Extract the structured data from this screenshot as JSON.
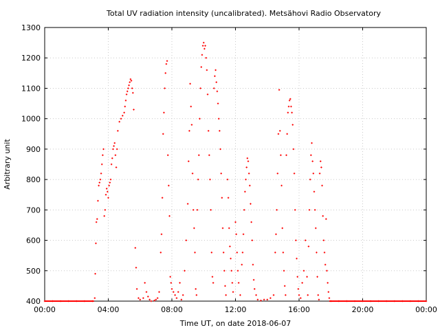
{
  "chart_data": {
    "type": "scatter",
    "title": "Total UV radiation intensity (uncalibrated). Metsähovi Radio Observatory",
    "xlabel": "Time UT, on date 2018-06-07",
    "ylabel": "Arbitrary unit",
    "xlim": [
      0,
      24
    ],
    "ylim": [
      400,
      1300
    ],
    "x_ticks": [
      {
        "value": 0,
        "label": "00:00"
      },
      {
        "value": 4,
        "label": "04:00"
      },
      {
        "value": 8,
        "label": "08:00"
      },
      {
        "value": 12,
        "label": "12:00"
      },
      {
        "value": 16,
        "label": "16:00"
      },
      {
        "value": 20,
        "label": "20:00"
      },
      {
        "value": 24,
        "label": "00:00"
      }
    ],
    "y_ticks": [
      400,
      500,
      600,
      700,
      800,
      900,
      1000,
      1100,
      1200,
      1300
    ],
    "grid": true,
    "legend": "none",
    "color": "#ff0000",
    "series": [
      {
        "x_unit": "hours UT",
        "points": [
          [
            0.0,
            400
          ],
          [
            0.5,
            400
          ],
          [
            1.0,
            400
          ],
          [
            1.5,
            400
          ],
          [
            2.0,
            400
          ],
          [
            2.5,
            400
          ],
          [
            3.0,
            400
          ],
          [
            3.15,
            410
          ],
          [
            3.18,
            490
          ],
          [
            3.22,
            590
          ],
          [
            3.25,
            660
          ],
          [
            3.3,
            670
          ],
          [
            3.35,
            730
          ],
          [
            3.4,
            780
          ],
          [
            3.45,
            790
          ],
          [
            3.5,
            800
          ],
          [
            3.55,
            820
          ],
          [
            3.6,
            850
          ],
          [
            3.65,
            880
          ],
          [
            3.7,
            900
          ],
          [
            3.75,
            680
          ],
          [
            3.8,
            700
          ],
          [
            3.85,
            750
          ],
          [
            3.9,
            770
          ],
          [
            3.95,
            760
          ],
          [
            4.0,
            740
          ],
          [
            4.05,
            780
          ],
          [
            4.1,
            790
          ],
          [
            4.15,
            800
          ],
          [
            4.2,
            850
          ],
          [
            4.25,
            870
          ],
          [
            4.3,
            900
          ],
          [
            4.35,
            910
          ],
          [
            4.4,
            920
          ],
          [
            4.45,
            880
          ],
          [
            4.5,
            840
          ],
          [
            4.55,
            900
          ],
          [
            4.6,
            960
          ],
          [
            4.7,
            990
          ],
          [
            4.8,
            1000
          ],
          [
            4.9,
            1010
          ],
          [
            5.0,
            1020
          ],
          [
            5.05,
            1040
          ],
          [
            5.1,
            1060
          ],
          [
            5.15,
            1080
          ],
          [
            5.2,
            1090
          ],
          [
            5.25,
            1100
          ],
          [
            5.3,
            1110
          ],
          [
            5.35,
            1120
          ],
          [
            5.4,
            1130
          ],
          [
            5.45,
            1125
          ],
          [
            5.5,
            1100
          ],
          [
            5.55,
            1085
          ],
          [
            5.6,
            1030
          ],
          [
            5.7,
            575
          ],
          [
            5.75,
            510
          ],
          [
            5.8,
            440
          ],
          [
            5.9,
            410
          ],
          [
            6.0,
            405
          ],
          [
            6.2,
            410
          ],
          [
            6.3,
            460
          ],
          [
            6.4,
            430
          ],
          [
            6.5,
            415
          ],
          [
            6.6,
            405
          ],
          [
            6.7,
            400
          ],
          [
            6.9,
            402
          ],
          [
            7.0,
            405
          ],
          [
            7.1,
            410
          ],
          [
            7.2,
            430
          ],
          [
            7.3,
            560
          ],
          [
            7.35,
            620
          ],
          [
            7.4,
            740
          ],
          [
            7.45,
            950
          ],
          [
            7.5,
            1020
          ],
          [
            7.55,
            1100
          ],
          [
            7.6,
            1150
          ],
          [
            7.65,
            1180
          ],
          [
            7.7,
            1190
          ],
          [
            7.75,
            880
          ],
          [
            7.8,
            780
          ],
          [
            7.85,
            680
          ],
          [
            7.9,
            480
          ],
          [
            7.95,
            460
          ],
          [
            8.0,
            440
          ],
          [
            8.1,
            430
          ],
          [
            8.2,
            420
          ],
          [
            8.3,
            410
          ],
          [
            8.4,
            430
          ],
          [
            8.5,
            460
          ],
          [
            8.6,
            405
          ],
          [
            8.7,
            420
          ],
          [
            8.8,
            500
          ],
          [
            8.9,
            600
          ],
          [
            9.0,
            720
          ],
          [
            9.05,
            860
          ],
          [
            9.1,
            960
          ],
          [
            9.15,
            1115
          ],
          [
            9.2,
            1040
          ],
          [
            9.25,
            980
          ],
          [
            9.3,
            820
          ],
          [
            9.35,
            700
          ],
          [
            9.4,
            640
          ],
          [
            9.45,
            560
          ],
          [
            9.5,
            440
          ],
          [
            9.55,
            420
          ],
          [
            9.6,
            700
          ],
          [
            9.65,
            800
          ],
          [
            9.7,
            880
          ],
          [
            9.75,
            1000
          ],
          [
            9.8,
            1100
          ],
          [
            9.85,
            1170
          ],
          [
            9.9,
            1210
          ],
          [
            9.95,
            1240
          ],
          [
            10.0,
            1250
          ],
          [
            10.05,
            1230
          ],
          [
            10.1,
            1240
          ],
          [
            10.15,
            1200
          ],
          [
            10.2,
            1160
          ],
          [
            10.25,
            1080
          ],
          [
            10.3,
            960
          ],
          [
            10.35,
            880
          ],
          [
            10.4,
            800
          ],
          [
            10.45,
            700
          ],
          [
            10.5,
            560
          ],
          [
            10.55,
            480
          ],
          [
            10.6,
            460
          ],
          [
            10.65,
            1100
          ],
          [
            10.7,
            1140
          ],
          [
            10.75,
            1160
          ],
          [
            10.8,
            1120
          ],
          [
            10.85,
            1090
          ],
          [
            10.9,
            1050
          ],
          [
            10.95,
            1000
          ],
          [
            11.0,
            960
          ],
          [
            11.05,
            900
          ],
          [
            11.1,
            820
          ],
          [
            11.15,
            740
          ],
          [
            11.2,
            640
          ],
          [
            11.25,
            560
          ],
          [
            11.3,
            500
          ],
          [
            11.35,
            450
          ],
          [
            11.4,
            420
          ],
          [
            11.5,
            800
          ],
          [
            11.55,
            740
          ],
          [
            11.6,
            640
          ],
          [
            11.65,
            580
          ],
          [
            11.7,
            540
          ],
          [
            11.75,
            500
          ],
          [
            11.8,
            460
          ],
          [
            11.85,
            430
          ],
          [
            12.0,
            660
          ],
          [
            12.05,
            620
          ],
          [
            12.1,
            560
          ],
          [
            12.15,
            500
          ],
          [
            12.2,
            460
          ],
          [
            12.3,
            420
          ],
          [
            12.4,
            520
          ],
          [
            12.45,
            560
          ],
          [
            12.5,
            620
          ],
          [
            12.55,
            700
          ],
          [
            12.6,
            760
          ],
          [
            12.65,
            800
          ],
          [
            12.7,
            840
          ],
          [
            12.75,
            870
          ],
          [
            12.8,
            860
          ],
          [
            12.85,
            820
          ],
          [
            12.9,
            780
          ],
          [
            12.95,
            720
          ],
          [
            13.0,
            660
          ],
          [
            13.05,
            600
          ],
          [
            13.1,
            520
          ],
          [
            13.15,
            470
          ],
          [
            13.2,
            440
          ],
          [
            13.3,
            420
          ],
          [
            13.4,
            405
          ],
          [
            13.6,
            402
          ],
          [
            13.8,
            405
          ],
          [
            14.0,
            405
          ],
          [
            14.2,
            410
          ],
          [
            14.4,
            420
          ],
          [
            14.5,
            560
          ],
          [
            14.55,
            620
          ],
          [
            14.6,
            700
          ],
          [
            14.65,
            820
          ],
          [
            14.7,
            950
          ],
          [
            14.75,
            1095
          ],
          [
            14.8,
            960
          ],
          [
            14.85,
            880
          ],
          [
            14.9,
            780
          ],
          [
            14.95,
            640
          ],
          [
            15.0,
            560
          ],
          [
            15.05,
            500
          ],
          [
            15.1,
            450
          ],
          [
            15.15,
            420
          ],
          [
            15.2,
            880
          ],
          [
            15.25,
            950
          ],
          [
            15.3,
            1020
          ],
          [
            15.35,
            1040
          ],
          [
            15.4,
            1060
          ],
          [
            15.45,
            1065
          ],
          [
            15.5,
            1040
          ],
          [
            15.55,
            1020
          ],
          [
            15.6,
            980
          ],
          [
            15.65,
            900
          ],
          [
            15.7,
            820
          ],
          [
            15.75,
            700
          ],
          [
            15.8,
            600
          ],
          [
            15.85,
            540
          ],
          [
            15.9,
            480
          ],
          [
            15.95,
            440
          ],
          [
            16.0,
            420
          ],
          [
            16.1,
            410
          ],
          [
            16.2,
            460
          ],
          [
            16.3,
            500
          ],
          [
            16.4,
            600
          ],
          [
            16.5,
            480
          ],
          [
            16.55,
            420
          ],
          [
            16.6,
            580
          ],
          [
            16.65,
            700
          ],
          [
            16.7,
            800
          ],
          [
            16.75,
            880
          ],
          [
            16.8,
            920
          ],
          [
            16.85,
            860
          ],
          [
            16.9,
            820
          ],
          [
            16.95,
            760
          ],
          [
            17.0,
            700
          ],
          [
            17.05,
            640
          ],
          [
            17.1,
            560
          ],
          [
            17.15,
            480
          ],
          [
            17.2,
            420
          ],
          [
            17.25,
            405
          ],
          [
            17.3,
            820
          ],
          [
            17.35,
            860
          ],
          [
            17.4,
            840
          ],
          [
            17.45,
            780
          ],
          [
            17.5,
            680
          ],
          [
            17.55,
            600
          ],
          [
            17.6,
            560
          ],
          [
            17.65,
            520
          ],
          [
            17.7,
            670
          ],
          [
            17.75,
            500
          ],
          [
            17.8,
            460
          ],
          [
            17.85,
            430
          ],
          [
            17.9,
            410
          ],
          [
            18.0,
            400
          ],
          [
            18.5,
            400
          ],
          [
            19.0,
            400
          ],
          [
            19.5,
            400
          ],
          [
            20.0,
            400
          ],
          [
            20.5,
            400
          ],
          [
            21.0,
            400
          ],
          [
            21.5,
            400
          ],
          [
            22.0,
            400
          ],
          [
            22.5,
            400
          ],
          [
            23.0,
            400
          ],
          [
            23.5,
            400
          ],
          [
            24.0,
            400
          ]
        ]
      }
    ]
  }
}
